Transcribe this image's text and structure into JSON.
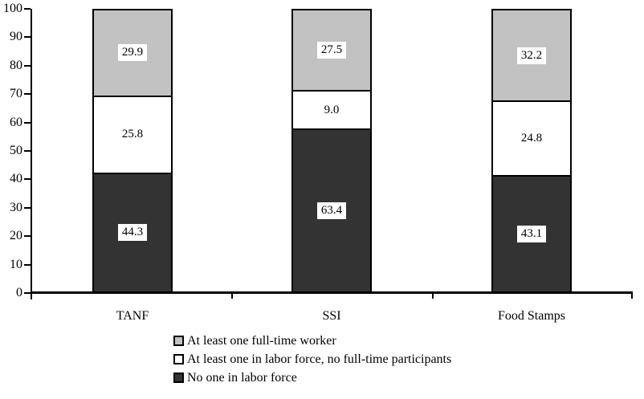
{
  "chart_data": {
    "type": "bar",
    "stacked": true,
    "title": "",
    "xlabel": "",
    "ylabel": "",
    "categories": [
      "TANF",
      "SSI",
      "Food Stamps"
    ],
    "series": [
      {
        "name": "At least one full-time worker",
        "color": "#c2c2c2",
        "values": [
          29.9,
          27.5,
          32.2
        ]
      },
      {
        "name": "At least one in labor force, no full-time participants",
        "color": "#ffffff",
        "values": [
          25.8,
          9.0,
          24.8
        ]
      },
      {
        "name": "No one in labor force",
        "color": "#333333",
        "values": [
          44.3,
          63.4,
          43.1
        ]
      }
    ],
    "ylim": [
      0,
      100
    ],
    "yticks": [
      0,
      10,
      20,
      30,
      40,
      50,
      60,
      70,
      80,
      90,
      100
    ],
    "value_label_decimals": 1,
    "legend_position": "bottom",
    "grid": false,
    "colors": {
      "axis": "#000000",
      "value_label_box_bg": "#ffffff",
      "text": "#000000"
    }
  }
}
